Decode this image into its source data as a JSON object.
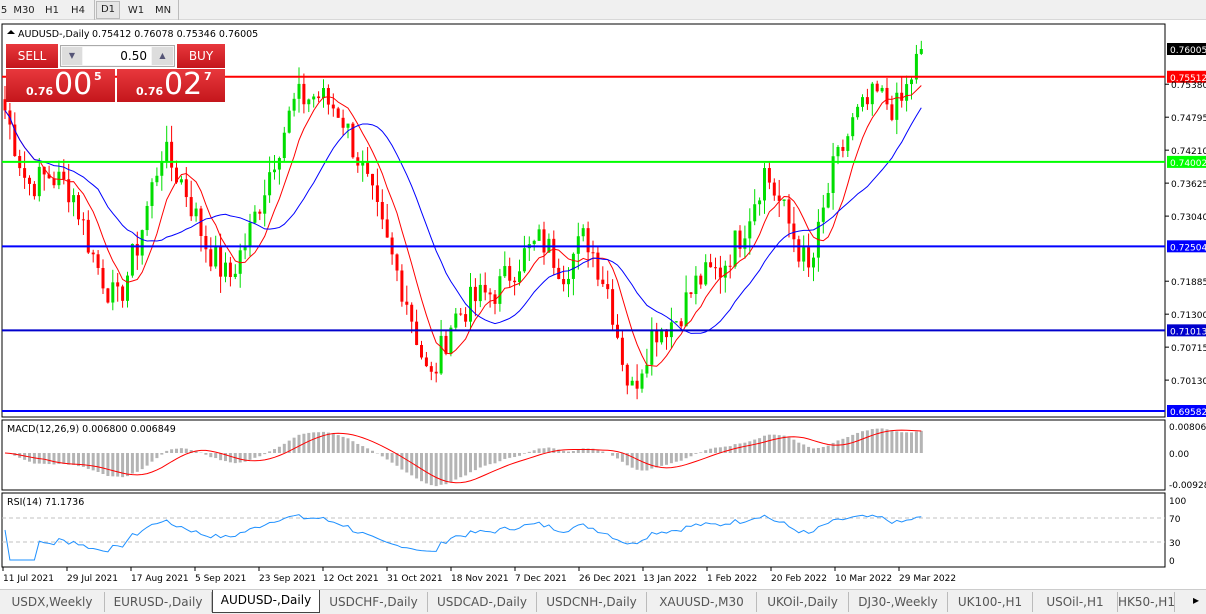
{
  "toolbar": {
    "timeframes": [
      "5",
      "M30",
      "H1",
      "H4",
      "D1",
      "W1",
      "MN"
    ],
    "active": "D1"
  },
  "chart": {
    "title": "AUDUSD-,Daily",
    "ohlc": "0.75412 0.76078 0.75346 0.76005"
  },
  "trade_panel": {
    "sell_label": "SELL",
    "buy_label": "BUY",
    "volume": "0.50",
    "sell_prefix": "0.76",
    "sell_big": "00",
    "sell_sup": "5",
    "buy_prefix": "0.76",
    "buy_big": "02",
    "buy_sup": "7"
  },
  "price_axis": {
    "ticks": [
      "0.75380",
      "0.74795",
      "0.74210",
      "0.73625",
      "0.73040",
      "0.71885",
      "0.71300",
      "0.70715",
      "0.70130"
    ],
    "current": "0.76005"
  },
  "hlines": [
    {
      "price": "0.75512",
      "color": "#ff0000"
    },
    {
      "price": "0.74002",
      "color": "#00ff00"
    },
    {
      "price": "0.72504",
      "color": "#0000ff"
    },
    {
      "price": "0.71013",
      "color": "#0000cc"
    },
    {
      "price": "0.69582",
      "color": "#0000ff"
    }
  ],
  "macd": {
    "label": "MACD(12,26,9) 0.006800 0.006849",
    "ticks": [
      "0.008061",
      "0.00",
      "-0.00928"
    ]
  },
  "rsi": {
    "label": "RSI(14) 71.1736",
    "ticks": [
      "100",
      "70",
      "30",
      "0"
    ]
  },
  "dates": [
    "11 Jul 2021",
    "29 Jul 2021",
    "17 Aug 2021",
    "5 Sep 2021",
    "23 Sep 2021",
    "12 Oct 2021",
    "31 Oct 2021",
    "18 Nov 2021",
    "7 Dec 2021",
    "26 Dec 2021",
    "13 Jan 2022",
    "1 Feb 2022",
    "20 Feb 2022",
    "10 Mar 2022",
    "29 Mar 2022"
  ],
  "colors": {
    "bull": "#00dd00",
    "bear": "#ff0000",
    "ma_fast": "#ff0000",
    "ma_slow": "#0000ff",
    "rsi": "#1e90ff",
    "macd_hist": "#b4b4b4"
  },
  "price_path": [
    0.7492,
    0.7359,
    0.7377,
    0.735,
    0.7226,
    0.7146,
    0.7262,
    0.7421,
    0.736,
    0.7253,
    0.719,
    0.728,
    0.7405,
    0.751,
    0.7518,
    0.749,
    0.7385,
    0.7262,
    0.7155,
    0.7005,
    0.712,
    0.7155,
    0.7172,
    0.7226,
    0.7262,
    0.7208,
    0.727,
    0.7172,
    0.6987,
    0.7102,
    0.712,
    0.719,
    0.7208,
    0.7279,
    0.7385,
    0.7297,
    0.7199,
    0.7377,
    0.7474,
    0.7518,
    0.7492,
    0.76005
  ],
  "tabs": [
    "USDX,Weekly",
    "EURUSD-,Daily",
    "AUDUSD-,Daily",
    "USDCHF-,Daily",
    "USDCAD-,Daily",
    "USDCNH-,Daily",
    "XAUUSD-,M30",
    "UKOil-,Daily",
    "DJ30-,Weekly",
    "UK100-,H1",
    "USOil-,H1",
    "HK50-,H1"
  ],
  "active_tab": "AUDUSD-,Daily"
}
